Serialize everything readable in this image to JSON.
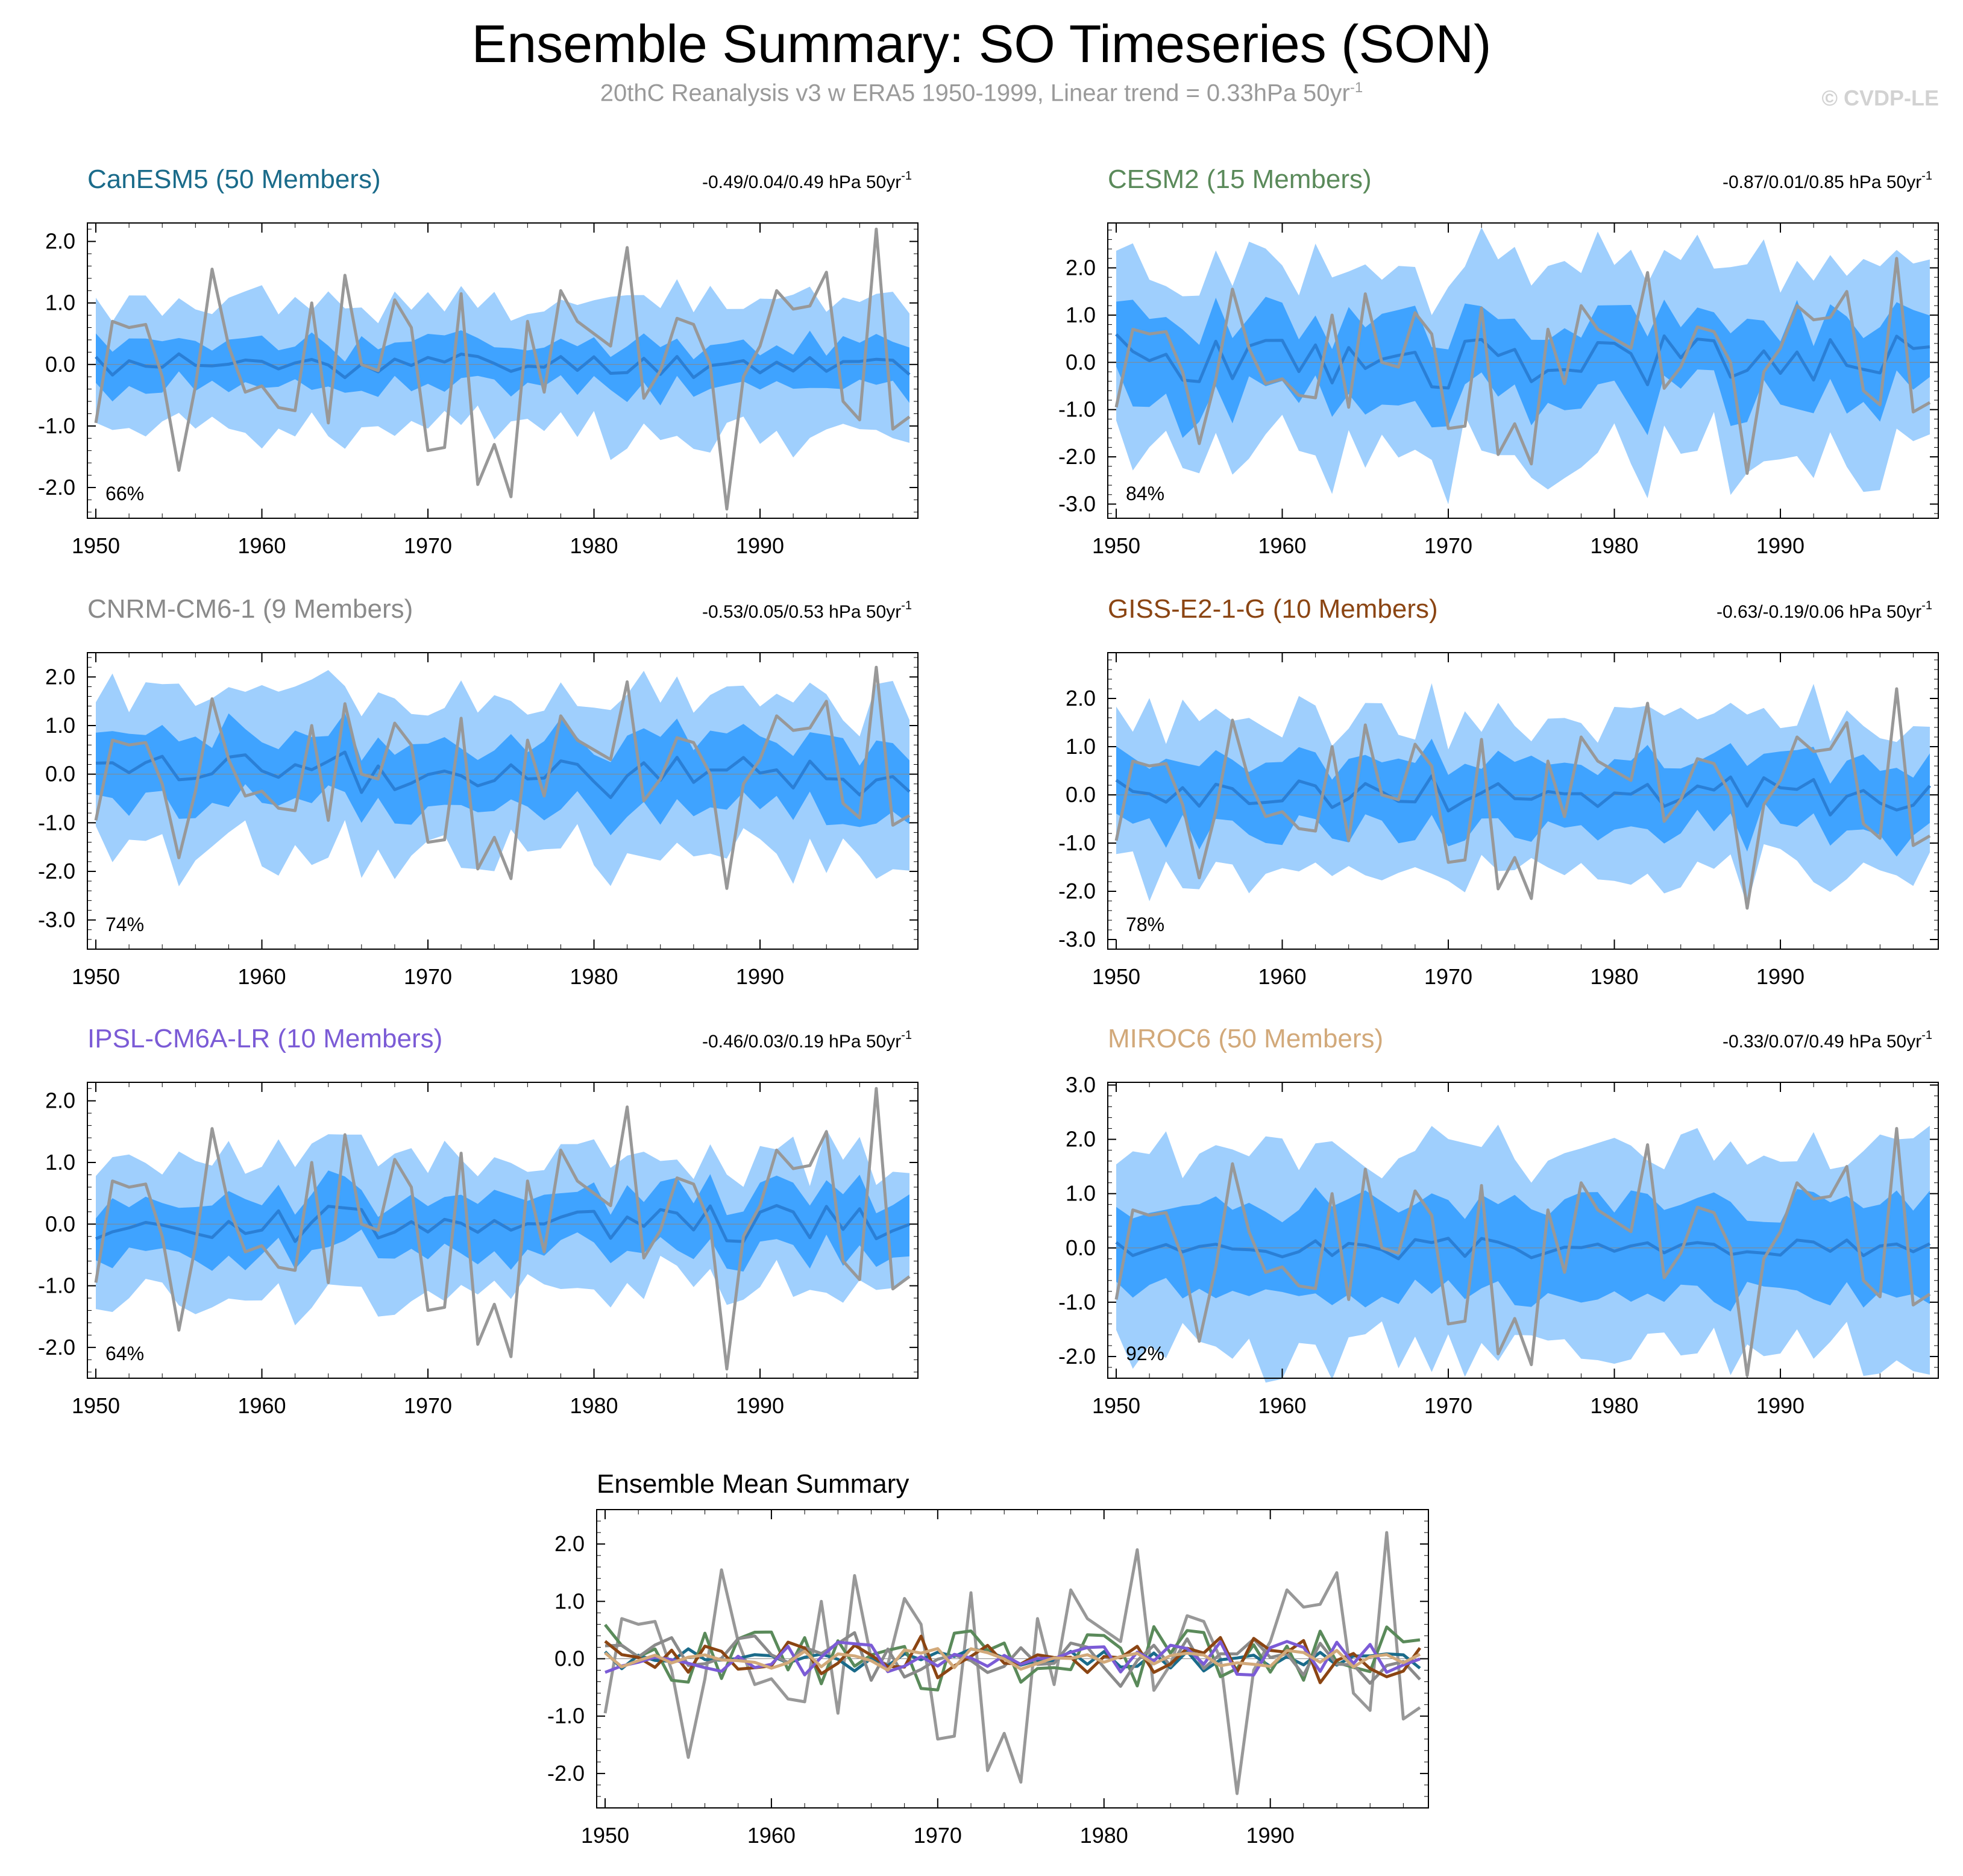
{
  "title": "Ensemble Summary: SO Timeseries (SON)",
  "subtitle": {
    "text": "20thC Reanalysis v3 w ERA5 1950-1999, Linear trend = 0.33hPa 50yr",
    "superscript": "-1"
  },
  "credit": "© CVDP-LE",
  "colors": {
    "outer_band": "#9fcffd",
    "inner_band": "#3fa3ff",
    "ens_mean": "#2a7fd6",
    "obs": "#989898",
    "frame": "#000000"
  },
  "years": [
    1950,
    1951,
    1952,
    1953,
    1954,
    1955,
    1956,
    1957,
    1958,
    1959,
    1960,
    1961,
    1962,
    1963,
    1964,
    1965,
    1966,
    1967,
    1968,
    1969,
    1970,
    1971,
    1972,
    1973,
    1974,
    1975,
    1976,
    1977,
    1978,
    1979,
    1980,
    1981,
    1982,
    1983,
    1984,
    1985,
    1986,
    1987,
    1988,
    1989,
    1990,
    1991,
    1992,
    1993,
    1994,
    1995,
    1996,
    1997,
    1998,
    1999
  ],
  "observations": {
    "name": "20thC Reanalysis v3 w ERA5",
    "values": [
      -0.95,
      0.7,
      0.6,
      0.65,
      -0.2,
      -1.72,
      -0.35,
      1.55,
      0.3,
      -0.45,
      -0.35,
      -0.7,
      -0.75,
      1.0,
      -0.95,
      1.45,
      0.0,
      -0.1,
      1.05,
      0.6,
      -1.4,
      -1.35,
      1.15,
      -1.95,
      -1.3,
      -2.15,
      0.7,
      -0.45,
      1.2,
      0.7,
      0.5,
      0.3,
      1.9,
      -0.55,
      -0.1,
      0.75,
      0.65,
      0.0,
      -2.35,
      -0.2,
      0.3,
      1.2,
      0.9,
      0.95,
      1.5,
      -0.6,
      -0.9,
      2.2,
      -1.05,
      -0.85
    ]
  },
  "x_ticks": [
    1950,
    1960,
    1970,
    1980,
    1990
  ],
  "chart_data": [
    {
      "type": "area",
      "name": "CanESM5",
      "title": "CanESM5 (50 Members)",
      "title_color": "#1a6b8a",
      "trend_text": "-0.49/0.04/0.49 hPa 50yr",
      "trend_sup": "-1",
      "percent": "66%",
      "ylim": [
        -2.5,
        2.3
      ],
      "yticks": [
        -2,
        -1,
        0,
        1,
        2
      ],
      "ytick_labels": [
        "-2.0",
        "-1.0",
        "0.0",
        "1.0",
        "2.0"
      ],
      "seed": 11,
      "spread_outer": 1.05,
      "spread_inner": 0.35,
      "mean_amp": 0.18
    },
    {
      "type": "area",
      "name": "CESM2",
      "title": "CESM2 (15 Members)",
      "title_color": "#5a8a5a",
      "trend_text": "-0.87/0.01/0.85 hPa 50yr",
      "trend_sup": "-1",
      "percent": "84%",
      "ylim": [
        -3.3,
        2.95
      ],
      "yticks": [
        -3,
        -2,
        -1,
        0,
        1,
        2
      ],
      "ytick_labels": [
        "-3.0",
        "-2.0",
        "-1.0",
        "0.0",
        "1.0",
        "2.0"
      ],
      "seed": 23,
      "spread_outer": 1.9,
      "spread_inner": 0.85,
      "mean_amp": 0.55
    },
    {
      "type": "area",
      "name": "CNRM-CM6-1",
      "title": "CNRM-CM6-1 (9 Members)",
      "title_color": "#8a8a8a",
      "trend_text": "-0.53/0.05/0.53 hPa 50yr",
      "trend_sup": "-1",
      "percent": "74%",
      "ylim": [
        -3.6,
        2.5
      ],
      "yticks": [
        -3,
        -2,
        -1,
        0,
        1,
        2
      ],
      "ytick_labels": [
        "-3.0",
        "-2.0",
        "-1.0",
        "0.0",
        "1.0",
        "2.0"
      ],
      "seed": 37,
      "spread_outer": 1.6,
      "spread_inner": 0.7,
      "mean_amp": 0.4
    },
    {
      "type": "area",
      "name": "GISS-E2-1-G",
      "title": "GISS-E2-1-G (10 Members)",
      "title_color": "#8b4513",
      "trend_text": "-0.63/-0.19/0.06 hPa 50yr",
      "trend_sup": "-1",
      "percent": "78%",
      "ylim": [
        -3.2,
        2.95
      ],
      "yticks": [
        -3,
        -2,
        -1,
        0,
        1,
        2
      ],
      "ytick_labels": [
        "-3.0",
        "-2.0",
        "-1.0",
        "0.0",
        "1.0",
        "2.0"
      ],
      "seed": 41,
      "spread_outer": 1.6,
      "spread_inner": 0.7,
      "mean_amp": 0.4
    },
    {
      "type": "area",
      "name": "IPSL-CM6A-LR",
      "title": "IPSL-CM6A-LR (10 Members)",
      "title_color": "#7b5bd6",
      "trend_text": "-0.46/0.03/0.19 hPa 50yr",
      "trend_sup": "-1",
      "percent": "64%",
      "ylim": [
        -2.5,
        2.3
      ],
      "yticks": [
        -2,
        -1,
        0,
        1,
        2
      ],
      "ytick_labels": [
        "-2.0",
        "-1.0",
        "0.0",
        "1.0",
        "2.0"
      ],
      "seed": 53,
      "spread_outer": 1.05,
      "spread_inner": 0.45,
      "mean_amp": 0.28
    },
    {
      "type": "area",
      "name": "MIROC6",
      "title": "MIROC6 (50 Members)",
      "title_color": "#d2a97a",
      "trend_text": "-0.33/0.07/0.49 hPa 50yr",
      "trend_sup": "-1",
      "percent": "92%",
      "ylim": [
        -2.4,
        3.05
      ],
      "yticks": [
        -2,
        -1,
        0,
        1,
        2,
        3
      ],
      "ytick_labels": [
        "-2.0",
        "-1.0",
        "0.0",
        "1.0",
        "2.0",
        "3.0"
      ],
      "seed": 67,
      "spread_outer": 1.75,
      "spread_inner": 0.8,
      "mean_amp": 0.16
    }
  ],
  "summary_chart": {
    "type": "line",
    "title": "Ensemble Mean Summary",
    "ylim": [
      -2.6,
      2.6
    ],
    "yticks": [
      -2,
      -1,
      0,
      1,
      2
    ],
    "ytick_labels": [
      "-2.0",
      "-1.0",
      "0.0",
      "1.0",
      "2.0"
    ],
    "series": [
      {
        "name": "CanESM5",
        "color": "#1a6b8a",
        "seed": 11,
        "amp": 0.18
      },
      {
        "name": "CESM2",
        "color": "#5a8a5a",
        "seed": 23,
        "amp": 0.55
      },
      {
        "name": "CNRM-CM6-1",
        "color": "#8a8a8a",
        "seed": 37,
        "amp": 0.4
      },
      {
        "name": "GISS-E2-1-G",
        "color": "#8b4513",
        "seed": 41,
        "amp": 0.4
      },
      {
        "name": "IPSL-CM6A-LR",
        "color": "#7b5bd6",
        "seed": 53,
        "amp": 0.28
      },
      {
        "name": "MIROC6",
        "color": "#d2a97a",
        "seed": 67,
        "amp": 0.16
      }
    ]
  }
}
